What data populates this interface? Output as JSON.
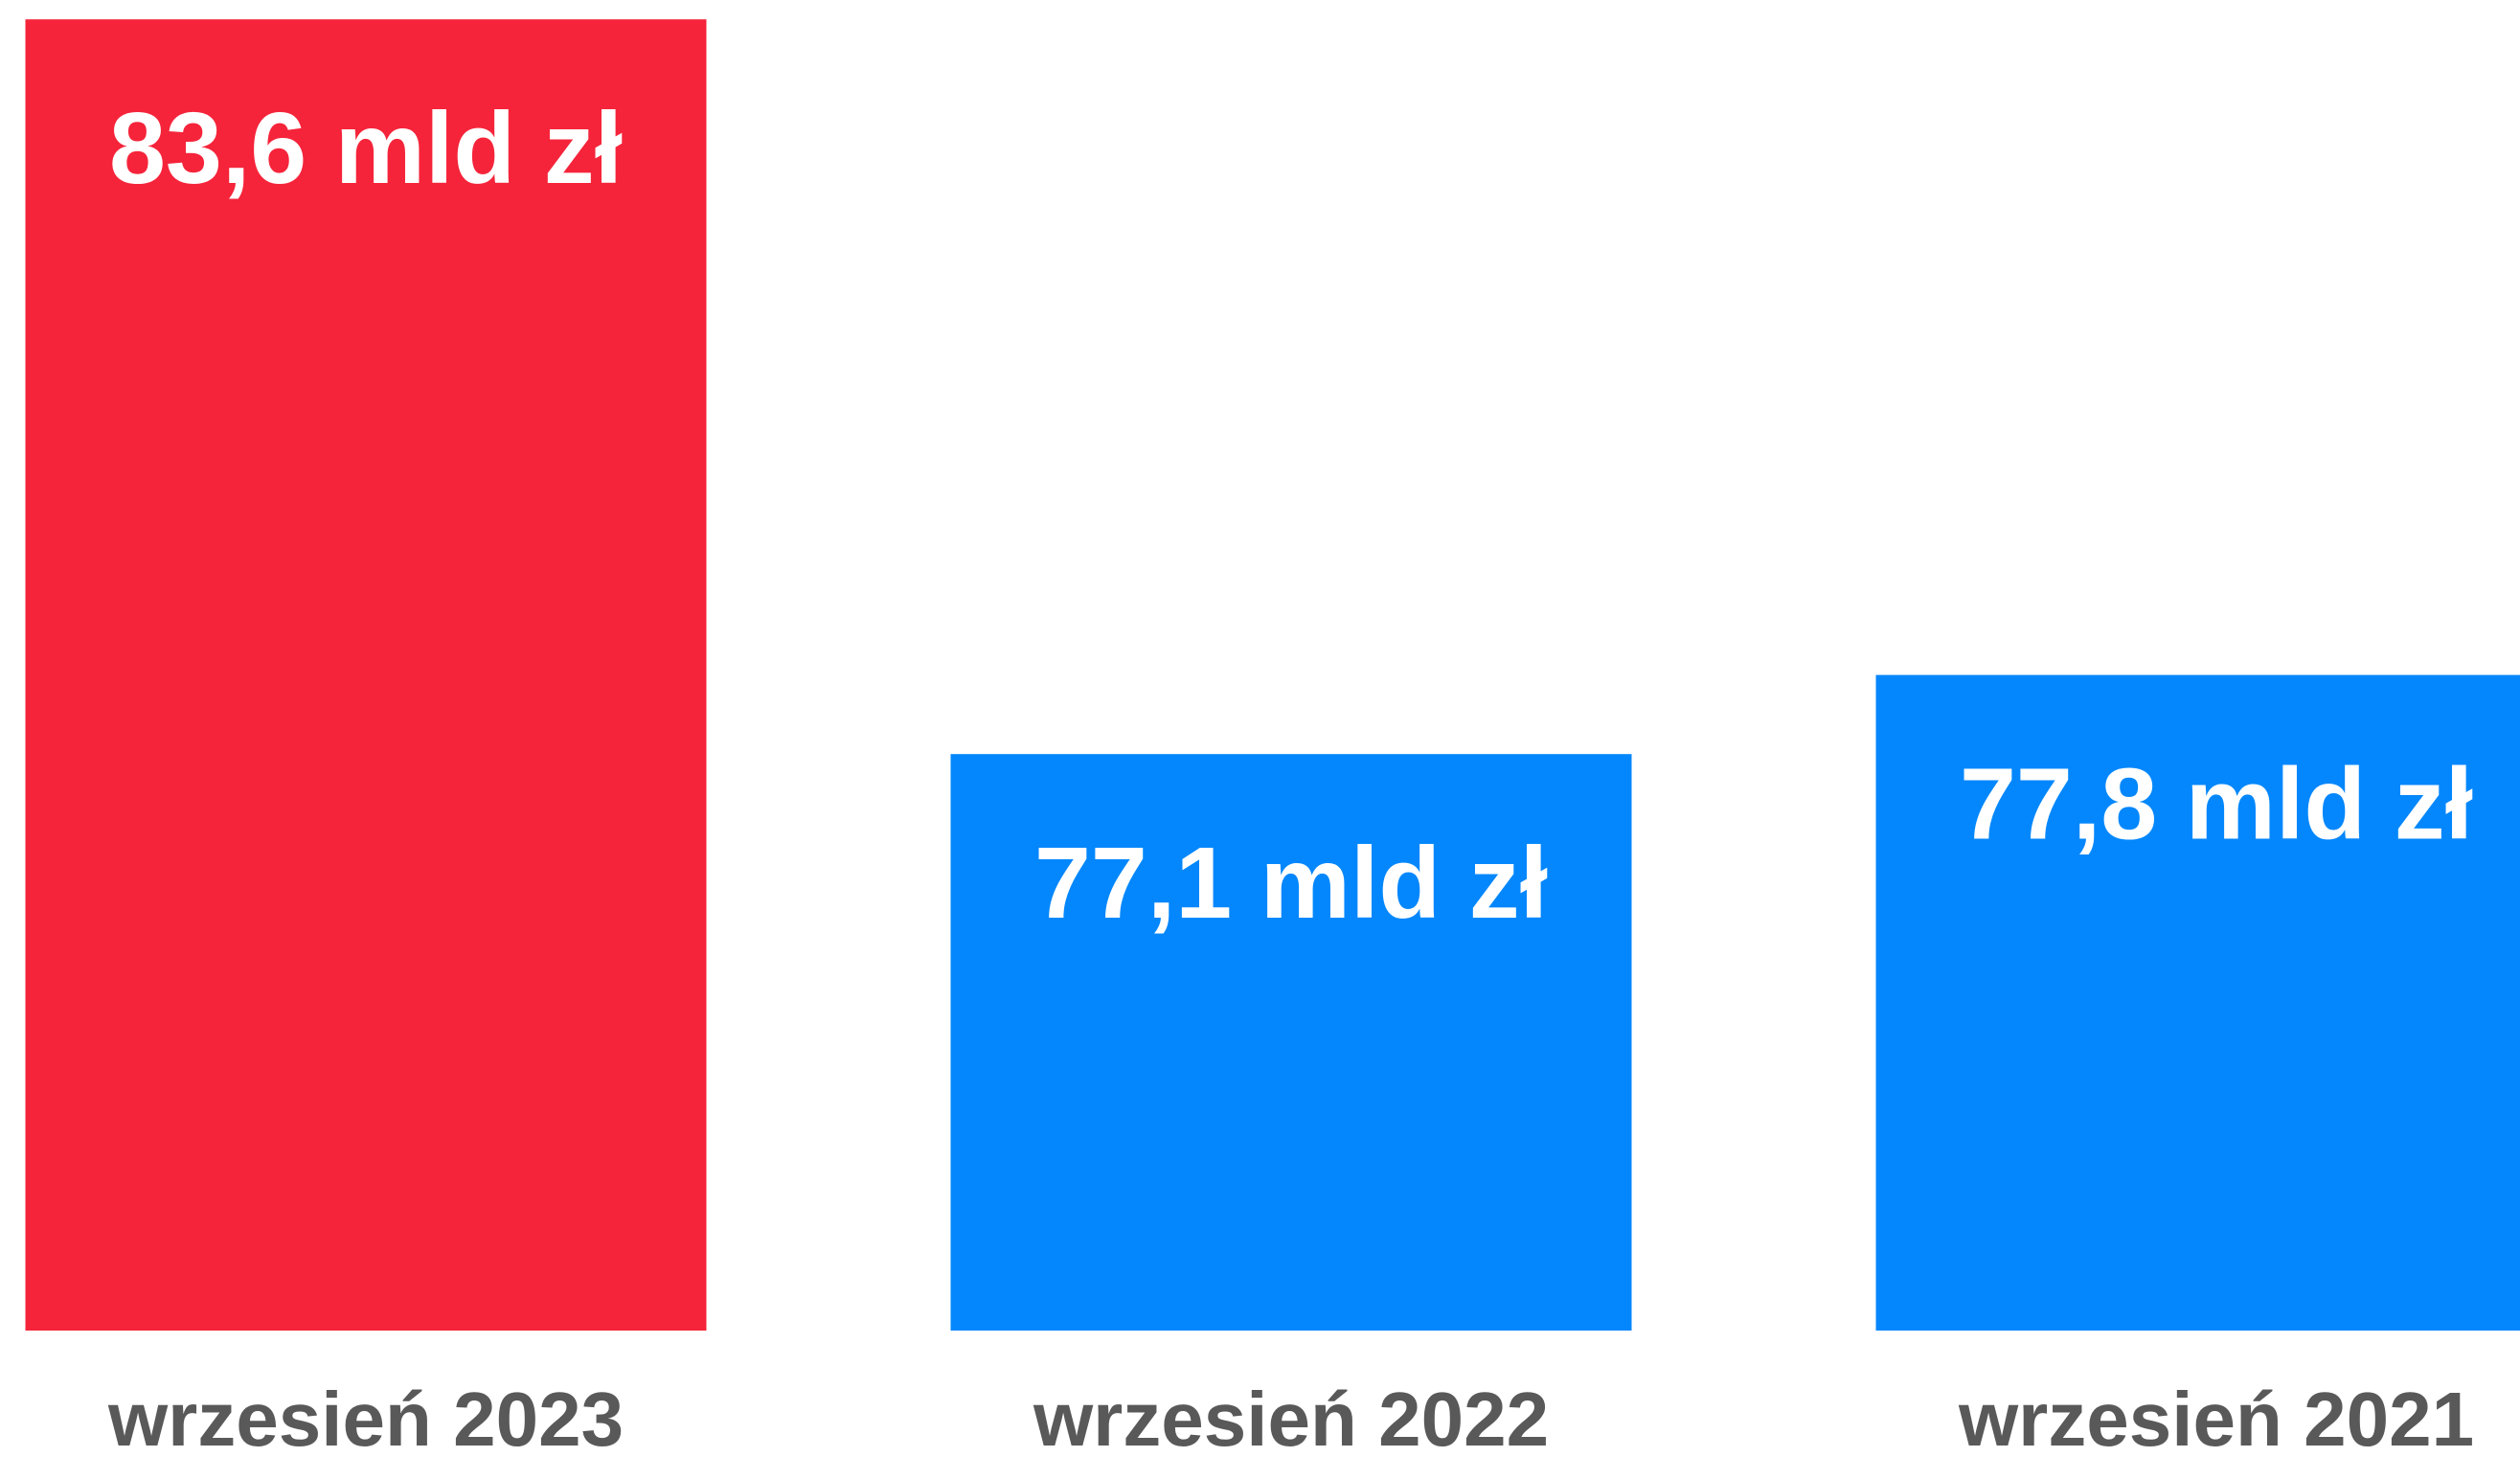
{
  "chart_data": {
    "type": "bar",
    "categories": [
      "wrzesień 2023",
      "wrzesień 2022",
      "wrzesień 2021"
    ],
    "values": [
      83.6,
      77.1,
      77.8
    ],
    "value_labels": [
      "83,6 mld zł",
      "77,1 mld zł",
      "77,8 mld zł"
    ],
    "colors": [
      "#f5243a",
      "#0487fc",
      "#0487fc"
    ],
    "ylim": [
      72,
      84
    ]
  }
}
